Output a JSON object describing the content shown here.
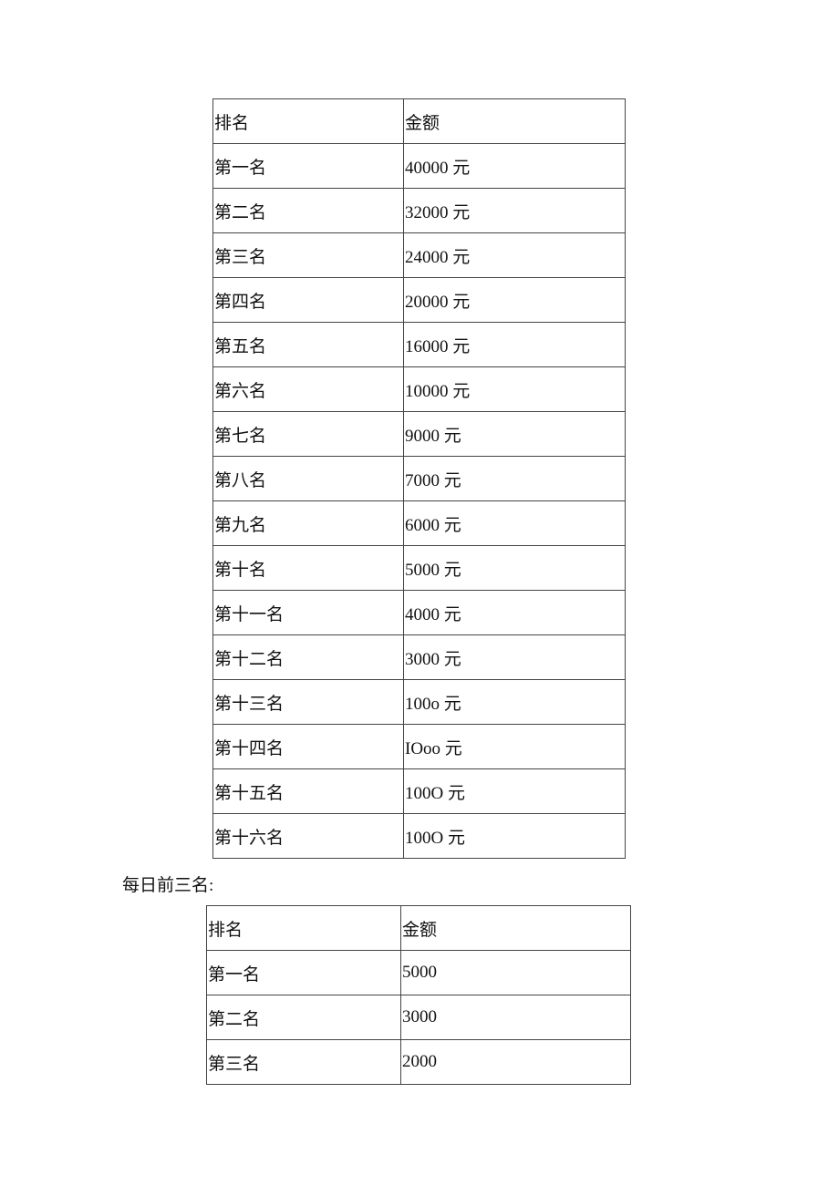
{
  "table1": {
    "headers": [
      "排名",
      "金额"
    ],
    "rows": [
      [
        "第一名",
        "40000 元"
      ],
      [
        "第二名",
        "32000 元"
      ],
      [
        "第三名",
        "24000 元"
      ],
      [
        "第四名",
        "20000 元"
      ],
      [
        "第五名",
        "16000 元"
      ],
      [
        "第六名",
        "10000 元"
      ],
      [
        "第七名",
        "9000 元"
      ],
      [
        "第八名",
        "7000 元"
      ],
      [
        "第九名",
        "6000 元"
      ],
      [
        "第十名",
        "5000 元"
      ],
      [
        "第十一名",
        "4000 元"
      ],
      [
        "第十二名",
        "3000 元"
      ],
      [
        "第十三名",
        "100o 元"
      ],
      [
        "第十四名",
        "IOoo 元"
      ],
      [
        "第十五名",
        "100O 元"
      ],
      [
        "第十六名",
        "100O 元"
      ]
    ]
  },
  "caption2": "每日前三名:",
  "table2": {
    "headers": [
      "排名",
      "金额"
    ],
    "rows": [
      [
        "第一名",
        "5000"
      ],
      [
        "第二名",
        "3000"
      ],
      [
        "第三名",
        "2000"
      ]
    ]
  }
}
